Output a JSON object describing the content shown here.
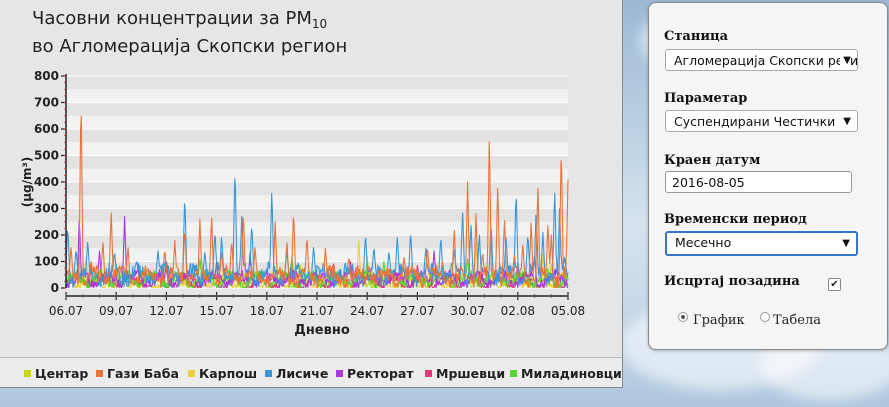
{
  "chart": {
    "title_line1": "Часовни концентрации за PM",
    "title_sub": "10",
    "title_line2": "во Агломерација Скопски регион",
    "xlabel": "Дневно",
    "ylabel": "(µg/m³)"
  },
  "chart_data": {
    "type": "line",
    "title": "Часовни концентрации за PM10 во Агломерација Скопски регион",
    "xlabel": "Дневно",
    "ylabel": "(µg/m³)",
    "ylim": [
      0,
      800
    ],
    "yticks": [
      0,
      100,
      200,
      300,
      400,
      500,
      600,
      700,
      800
    ],
    "x_tick_labels": [
      "06.07",
      "09.07",
      "12.07",
      "15.07",
      "18.07",
      "21.07",
      "24.07",
      "27.07",
      "30.07",
      "02.08",
      "05.08"
    ],
    "x_day_range": [
      0,
      30
    ],
    "grid": true,
    "legend_position": "bottom",
    "series": [
      {
        "name": "Центар",
        "color": "#c8d419",
        "peaks": [
          [
            1.0,
            70
          ],
          [
            14.0,
            85
          ],
          [
            18.0,
            120
          ],
          [
            25.0,
            75
          ],
          [
            29.0,
            90
          ]
        ]
      },
      {
        "name": "Гази Баба",
        "color": "#e8743b",
        "peaks": [
          [
            0.3,
            160
          ],
          [
            0.9,
            745
          ],
          [
            1.5,
            100
          ],
          [
            2.2,
            180
          ],
          [
            2.7,
            300
          ],
          [
            3.7,
            160
          ],
          [
            4.9,
            60
          ],
          [
            5.9,
            150
          ],
          [
            6.5,
            180
          ],
          [
            7.1,
            230
          ],
          [
            8.0,
            260
          ],
          [
            8.7,
            280
          ],
          [
            9.3,
            140
          ],
          [
            9.9,
            185
          ],
          [
            10.6,
            300
          ],
          [
            11.3,
            160
          ],
          [
            12.5,
            250
          ],
          [
            13.2,
            180
          ],
          [
            13.6,
            300
          ],
          [
            14.4,
            200
          ],
          [
            15.5,
            150
          ],
          [
            16.9,
            120
          ],
          [
            18.1,
            85
          ],
          [
            19.4,
            75
          ],
          [
            20.2,
            120
          ],
          [
            21.6,
            160
          ],
          [
            22.5,
            100
          ],
          [
            23.2,
            230
          ],
          [
            24.0,
            400
          ],
          [
            24.5,
            280
          ],
          [
            24.9,
            140
          ],
          [
            25.3,
            590
          ],
          [
            25.8,
            400
          ],
          [
            26.2,
            270
          ],
          [
            26.8,
            130
          ],
          [
            27.3,
            170
          ],
          [
            27.8,
            260
          ],
          [
            28.2,
            400
          ],
          [
            28.8,
            250
          ],
          [
            29.0,
            200
          ],
          [
            29.6,
            550
          ],
          [
            30.0,
            410
          ]
        ]
      },
      {
        "name": "Карпош",
        "color": "#e8d23b",
        "peaks": [
          [
            1.2,
            120
          ],
          [
            11.0,
            140
          ],
          [
            17.5,
            180
          ],
          [
            24.5,
            170
          ],
          [
            28.5,
            130
          ]
        ]
      },
      {
        "name": "Лисиче",
        "color": "#3b96d6",
        "peaks": [
          [
            0.1,
            240
          ],
          [
            0.6,
            150
          ],
          [
            1.3,
            180
          ],
          [
            2.9,
            140
          ],
          [
            4.2,
            100
          ],
          [
            5.5,
            140
          ],
          [
            7.1,
            360
          ],
          [
            8.3,
            140
          ],
          [
            8.9,
            220
          ],
          [
            9.3,
            200
          ],
          [
            10.1,
            470
          ],
          [
            10.5,
            270
          ],
          [
            11.1,
            250
          ],
          [
            12.3,
            380
          ],
          [
            13.2,
            140
          ],
          [
            14.8,
            160
          ],
          [
            17.9,
            210
          ],
          [
            18.4,
            160
          ],
          [
            19.3,
            140
          ],
          [
            19.8,
            200
          ],
          [
            20.6,
            220
          ],
          [
            21.5,
            150
          ],
          [
            22.4,
            200
          ],
          [
            23.2,
            150
          ],
          [
            23.7,
            300
          ],
          [
            24.2,
            250
          ],
          [
            24.7,
            210
          ],
          [
            25.4,
            250
          ],
          [
            26.3,
            200
          ],
          [
            26.9,
            380
          ],
          [
            27.6,
            210
          ],
          [
            28.1,
            310
          ],
          [
            28.5,
            210
          ],
          [
            29.2,
            380
          ],
          [
            29.5,
            300
          ],
          [
            29.8,
            120
          ]
        ]
      },
      {
        "name": "Ректорат",
        "color": "#a63bdb",
        "peaks": [
          [
            0.8,
            270
          ],
          [
            2.0,
            140
          ],
          [
            3.5,
            270
          ],
          [
            6.0,
            100
          ],
          [
            11.0,
            130
          ],
          [
            17.0,
            100
          ],
          [
            22.0,
            140
          ],
          [
            28.0,
            120
          ]
        ]
      },
      {
        "name": "Мршевци",
        "color": "#db3b7a",
        "peaks": [
          [
            1.5,
            80
          ],
          [
            9.0,
            100
          ],
          [
            16.0,
            90
          ],
          [
            21.0,
            85
          ],
          [
            27.0,
            95
          ]
        ]
      },
      {
        "name": "Миладиновци",
        "color": "#58d43b",
        "peaks": [
          [
            3.0,
            90
          ],
          [
            8.0,
            110
          ],
          [
            13.5,
            120
          ],
          [
            19.0,
            100
          ],
          [
            24.0,
            110
          ]
        ]
      }
    ]
  },
  "legend": [
    {
      "label": "Центар",
      "color": "#c8d419"
    },
    {
      "label": "Гази Баба",
      "color": "#e8743b"
    },
    {
      "label": "Карпош",
      "color": "#e8d23b"
    },
    {
      "label": "Лисиче",
      "color": "#3b96d6"
    },
    {
      "label": "Ректорат",
      "color": "#a63bdb"
    },
    {
      "label": "Мршевци",
      "color": "#db3b7a"
    },
    {
      "label": "Миладиновци",
      "color": "#58d43b"
    }
  ],
  "controls": {
    "station_label": "Станица",
    "station_value": "Агломерација Скопски регион",
    "parameter_label": "Параметар",
    "parameter_value": "Суспендирани Честички",
    "end_date_label": "Краен датум",
    "end_date_value": "2016-08-05",
    "period_label": "Временски период",
    "period_value": "Месечно",
    "background_label": "Исцртај позадина",
    "background_checked": true,
    "view_graph_label": "График",
    "view_table_label": "Табела",
    "view_selected": "graph"
  }
}
